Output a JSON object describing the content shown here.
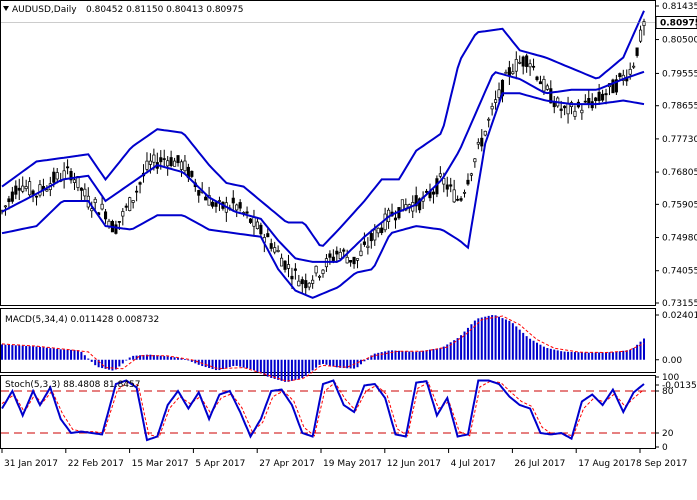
{
  "header": {
    "symbol": "AUDUSD,Daily",
    "ohlc": "0.80452 0.81150 0.80413 0.80975"
  },
  "colors": {
    "bollinger": "#0000cc",
    "candles": "#000000",
    "macd_hist": "#0000cc",
    "macd_signal": "#ff0000",
    "stoch_main": "#0000cc",
    "stoch_signal": "#ff0000",
    "levels": "#cc0000",
    "price_tag_bg": "#ffffff"
  },
  "x_axis": {
    "labels": [
      "31 Jan 2017",
      "22 Feb 2017",
      "15 Mar 2017",
      "5 Apr 2017",
      "27 Apr 2017",
      "19 May 2017",
      "12 Jun 2017",
      "4 Jul 2017",
      "26 Jul 2017",
      "17 Aug 2017",
      "8 Sep 2017"
    ]
  },
  "price_panel": {
    "y_ticks": [
      "0.81435",
      "0.80500",
      "0.79555",
      "0.78655",
      "0.77730",
      "0.76805",
      "0.75905",
      "0.74980",
      "0.74055",
      "0.73155"
    ],
    "tick_values": [
      0.81435,
      0.805,
      0.79555,
      0.78655,
      0.7773,
      0.76805,
      0.75905,
      0.7498,
      0.74055,
      0.73155
    ],
    "current_price": "0.80975",
    "current_value": 0.80975
  },
  "macd_panel": {
    "label": "MACD(5,34,4) 0.011428 0.008732",
    "y_ticks": [
      "0.024012",
      "0.00",
      "-0.013547"
    ],
    "tick_values": [
      0.024012,
      0.0,
      -0.013547
    ]
  },
  "stoch_panel": {
    "label": "Stoch(5,3,3) 88.4808 81.8457",
    "y_ticks": [
      "100",
      "80",
      "20",
      "0"
    ],
    "tick_values": [
      100,
      80,
      20,
      0
    ]
  },
  "chart_data": {
    "type": "line",
    "description_series": [
      "price (OHLC candles)",
      "Bollinger upper",
      "Bollinger middle",
      "Bollinger lower",
      "MACD histogram",
      "MACD signal",
      "Stoch main",
      "Stoch signal"
    ],
    "x_range": [
      "31 Jan 2017",
      "8 Sep 2017"
    ],
    "price_anchors": [
      [
        0,
        0.757
      ],
      [
        10,
        0.765
      ],
      [
        20,
        0.762
      ],
      [
        30,
        0.766
      ],
      [
        40,
        0.768
      ],
      [
        50,
        0.76
      ],
      [
        60,
        0.757
      ],
      [
        65,
        0.752
      ],
      [
        75,
        0.76
      ],
      [
        85,
        0.77
      ],
      [
        95,
        0.772
      ],
      [
        105,
        0.77
      ],
      [
        115,
        0.763
      ],
      [
        125,
        0.758
      ],
      [
        135,
        0.759
      ],
      [
        145,
        0.754
      ],
      [
        155,
        0.749
      ],
      [
        165,
        0.742
      ],
      [
        175,
        0.737
      ],
      [
        185,
        0.741
      ],
      [
        195,
        0.746
      ],
      [
        205,
        0.743
      ],
      [
        215,
        0.75
      ],
      [
        225,
        0.756
      ],
      [
        235,
        0.759
      ],
      [
        245,
        0.76
      ],
      [
        255,
        0.766
      ],
      [
        265,
        0.76
      ],
      [
        275,
        0.773
      ],
      [
        285,
        0.786
      ],
      [
        295,
        0.797
      ],
      [
        305,
        0.8
      ],
      [
        315,
        0.791
      ],
      [
        325,
        0.785
      ],
      [
        335,
        0.786
      ],
      [
        345,
        0.788
      ],
      [
        355,
        0.792
      ],
      [
        365,
        0.797
      ],
      [
        372,
        0.809
      ]
    ],
    "bb_upper_anchors": [
      [
        0,
        0.764
      ],
      [
        20,
        0.771
      ],
      [
        35,
        0.772
      ],
      [
        50,
        0.773
      ],
      [
        60,
        0.766
      ],
      [
        75,
        0.775
      ],
      [
        90,
        0.78
      ],
      [
        105,
        0.779
      ],
      [
        120,
        0.77
      ],
      [
        130,
        0.765
      ],
      [
        140,
        0.764
      ],
      [
        155,
        0.758
      ],
      [
        165,
        0.754
      ],
      [
        175,
        0.754
      ],
      [
        185,
        0.747
      ],
      [
        195,
        0.752
      ],
      [
        210,
        0.76
      ],
      [
        220,
        0.766
      ],
      [
        230,
        0.766
      ],
      [
        240,
        0.774
      ],
      [
        255,
        0.779
      ],
      [
        265,
        0.799
      ],
      [
        275,
        0.807
      ],
      [
        290,
        0.808
      ],
      [
        300,
        0.802
      ],
      [
        315,
        0.8
      ],
      [
        330,
        0.797
      ],
      [
        345,
        0.794
      ],
      [
        360,
        0.8
      ],
      [
        372,
        0.813
      ]
    ],
    "bb_mid_anchors": [
      [
        0,
        0.757
      ],
      [
        20,
        0.762
      ],
      [
        35,
        0.766
      ],
      [
        50,
        0.767
      ],
      [
        60,
        0.76
      ],
      [
        75,
        0.765
      ],
      [
        90,
        0.77
      ],
      [
        105,
        0.768
      ],
      [
        120,
        0.761
      ],
      [
        135,
        0.757
      ],
      [
        150,
        0.755
      ],
      [
        160,
        0.749
      ],
      [
        170,
        0.744
      ],
      [
        180,
        0.743
      ],
      [
        195,
        0.743
      ],
      [
        210,
        0.75
      ],
      [
        225,
        0.756
      ],
      [
        240,
        0.759
      ],
      [
        255,
        0.766
      ],
      [
        265,
        0.774
      ],
      [
        275,
        0.785
      ],
      [
        285,
        0.796
      ],
      [
        300,
        0.794
      ],
      [
        315,
        0.79
      ],
      [
        330,
        0.791
      ],
      [
        345,
        0.791
      ],
      [
        360,
        0.794
      ],
      [
        372,
        0.796
      ]
    ],
    "bb_lower_anchors": [
      [
        0,
        0.751
      ],
      [
        20,
        0.753
      ],
      [
        35,
        0.76
      ],
      [
        50,
        0.76
      ],
      [
        60,
        0.753
      ],
      [
        75,
        0.752
      ],
      [
        90,
        0.756
      ],
      [
        105,
        0.756
      ],
      [
        120,
        0.752
      ],
      [
        135,
        0.751
      ],
      [
        150,
        0.75
      ],
      [
        160,
        0.741
      ],
      [
        170,
        0.735
      ],
      [
        180,
        0.733
      ],
      [
        195,
        0.736
      ],
      [
        205,
        0.74
      ],
      [
        215,
        0.741
      ],
      [
        225,
        0.751
      ],
      [
        240,
        0.753
      ],
      [
        255,
        0.752
      ],
      [
        265,
        0.749
      ],
      [
        270,
        0.747
      ],
      [
        280,
        0.776
      ],
      [
        290,
        0.79
      ],
      [
        300,
        0.79
      ],
      [
        315,
        0.788
      ],
      [
        330,
        0.787
      ],
      [
        345,
        0.787
      ],
      [
        360,
        0.788
      ],
      [
        372,
        0.787
      ]
    ],
    "macd_anchors": [
      [
        0,
        0.0082
      ],
      [
        20,
        0.0071
      ],
      [
        35,
        0.0055
      ],
      [
        45,
        0.0051
      ],
      [
        55,
        -0.0038
      ],
      [
        65,
        -0.006
      ],
      [
        75,
        0.002
      ],
      [
        85,
        0.0028
      ],
      [
        95,
        0.0019
      ],
      [
        105,
        0.0008
      ],
      [
        115,
        -0.0031
      ],
      [
        125,
        -0.0058
      ],
      [
        135,
        -0.0031
      ],
      [
        145,
        -0.0052
      ],
      [
        155,
        -0.0095
      ],
      [
        165,
        -0.0121
      ],
      [
        175,
        -0.0095
      ],
      [
        185,
        -0.002
      ],
      [
        195,
        -0.0043
      ],
      [
        205,
        -0.0048
      ],
      [
        215,
        0.0031
      ],
      [
        225,
        0.0051
      ],
      [
        240,
        0.0042
      ],
      [
        255,
        0.0065
      ],
      [
        265,
        0.0122
      ],
      [
        275,
        0.022
      ],
      [
        285,
        0.0242
      ],
      [
        295,
        0.0205
      ],
      [
        305,
        0.0118
      ],
      [
        315,
        0.0065
      ],
      [
        325,
        0.0044
      ],
      [
        340,
        0.0038
      ],
      [
        355,
        0.0041
      ],
      [
        365,
        0.0055
      ],
      [
        372,
        0.0114
      ]
    ],
    "macd_signal_anchors": [
      [
        0,
        0.0085
      ],
      [
        20,
        0.0073
      ],
      [
        35,
        0.0058
      ],
      [
        50,
        0.0042
      ],
      [
        60,
        -0.0042
      ],
      [
        70,
        -0.0048
      ],
      [
        80,
        0.0022
      ],
      [
        95,
        0.0022
      ],
      [
        110,
        0.0
      ],
      [
        125,
        -0.0048
      ],
      [
        140,
        -0.0042
      ],
      [
        155,
        -0.0085
      ],
      [
        165,
        -0.0115
      ],
      [
        175,
        -0.01
      ],
      [
        185,
        -0.003
      ],
      [
        200,
        -0.004
      ],
      [
        215,
        0.0021
      ],
      [
        230,
        0.0046
      ],
      [
        245,
        0.0046
      ],
      [
        258,
        0.0068
      ],
      [
        268,
        0.013
      ],
      [
        278,
        0.0215
      ],
      [
        290,
        0.0235
      ],
      [
        300,
        0.0188
      ],
      [
        310,
        0.0108
      ],
      [
        320,
        0.0062
      ],
      [
        335,
        0.004
      ],
      [
        350,
        0.0039
      ],
      [
        362,
        0.0046
      ],
      [
        372,
        0.0087
      ]
    ],
    "stoch_main_anchors": [
      [
        0,
        55
      ],
      [
        6,
        80
      ],
      [
        12,
        45
      ],
      [
        18,
        80
      ],
      [
        22,
        60
      ],
      [
        28,
        85
      ],
      [
        34,
        40
      ],
      [
        40,
        20
      ],
      [
        46,
        22
      ],
      [
        52,
        20
      ],
      [
        58,
        18
      ],
      [
        66,
        90
      ],
      [
        72,
        95
      ],
      [
        78,
        85
      ],
      [
        84,
        10
      ],
      [
        90,
        15
      ],
      [
        96,
        60
      ],
      [
        102,
        80
      ],
      [
        108,
        55
      ],
      [
        114,
        78
      ],
      [
        120,
        40
      ],
      [
        126,
        75
      ],
      [
        132,
        80
      ],
      [
        138,
        50
      ],
      [
        144,
        15
      ],
      [
        150,
        40
      ],
      [
        156,
        80
      ],
      [
        162,
        82
      ],
      [
        168,
        60
      ],
      [
        174,
        20
      ],
      [
        180,
        15
      ],
      [
        186,
        90
      ],
      [
        192,
        95
      ],
      [
        198,
        60
      ],
      [
        204,
        50
      ],
      [
        210,
        88
      ],
      [
        216,
        90
      ],
      [
        222,
        70
      ],
      [
        228,
        18
      ],
      [
        234,
        15
      ],
      [
        240,
        92
      ],
      [
        246,
        94
      ],
      [
        252,
        45
      ],
      [
        258,
        70
      ],
      [
        264,
        15
      ],
      [
        270,
        18
      ],
      [
        276,
        95
      ],
      [
        282,
        95
      ],
      [
        288,
        90
      ],
      [
        294,
        72
      ],
      [
        300,
        60
      ],
      [
        306,
        55
      ],
      [
        312,
        20
      ],
      [
        318,
        18
      ],
      [
        324,
        20
      ],
      [
        330,
        12
      ],
      [
        336,
        65
      ],
      [
        342,
        75
      ],
      [
        348,
        60
      ],
      [
        354,
        82
      ],
      [
        360,
        50
      ],
      [
        366,
        78
      ],
      [
        372,
        90
      ]
    ],
    "stoch_signal_anchors": [
      [
        0,
        62
      ],
      [
        7,
        75
      ],
      [
        13,
        50
      ],
      [
        19,
        75
      ],
      [
        23,
        62
      ],
      [
        29,
        80
      ],
      [
        35,
        48
      ],
      [
        41,
        25
      ],
      [
        47,
        22
      ],
      [
        53,
        22
      ],
      [
        59,
        20
      ],
      [
        67,
        82
      ],
      [
        73,
        92
      ],
      [
        79,
        88
      ],
      [
        85,
        18
      ],
      [
        91,
        14
      ],
      [
        97,
        55
      ],
      [
        103,
        72
      ],
      [
        109,
        62
      ],
      [
        115,
        72
      ],
      [
        121,
        48
      ],
      [
        127,
        70
      ],
      [
        133,
        76
      ],
      [
        139,
        56
      ],
      [
        145,
        22
      ],
      [
        151,
        35
      ],
      [
        157,
        72
      ],
      [
        163,
        80
      ],
      [
        169,
        66
      ],
      [
        175,
        28
      ],
      [
        181,
        16
      ],
      [
        187,
        80
      ],
      [
        193,
        92
      ],
      [
        199,
        68
      ],
      [
        205,
        52
      ],
      [
        211,
        80
      ],
      [
        217,
        88
      ],
      [
        223,
        75
      ],
      [
        229,
        26
      ],
      [
        235,
        16
      ],
      [
        241,
        84
      ],
      [
        247,
        92
      ],
      [
        253,
        55
      ],
      [
        259,
        65
      ],
      [
        265,
        22
      ],
      [
        271,
        16
      ],
      [
        277,
        86
      ],
      [
        283,
        94
      ],
      [
        289,
        92
      ],
      [
        295,
        78
      ],
      [
        301,
        65
      ],
      [
        307,
        58
      ],
      [
        313,
        28
      ],
      [
        319,
        18
      ],
      [
        325,
        19
      ],
      [
        331,
        16
      ],
      [
        337,
        55
      ],
      [
        343,
        70
      ],
      [
        349,
        64
      ],
      [
        355,
        76
      ],
      [
        361,
        58
      ],
      [
        367,
        72
      ],
      [
        372,
        82
      ]
    ],
    "stoch_levels": [
      80,
      20
    ]
  }
}
